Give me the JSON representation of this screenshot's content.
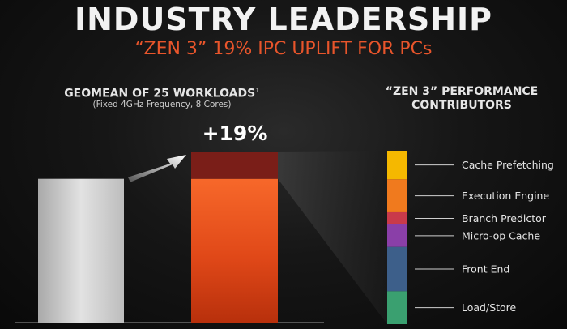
{
  "header": {
    "title": "INDUSTRY LEADERSHIP",
    "subtitle": "“ZEN 3” 19% IPC UPLIFT FOR PCs"
  },
  "left_panel": {
    "heading": "GEOMEAN OF 25 WORKLOADS",
    "footnote_mark": "1",
    "subheading": "(Fixed 4GHz Frequency, 8 Cores)"
  },
  "right_panel": {
    "heading_line1": "“ZEN 3” PERFORMANCE",
    "heading_line2": "CONTRIBUTORS"
  },
  "chart_data": {
    "type": "bar",
    "categories": [
      "",
      ""
    ],
    "values": [
      100,
      119
    ],
    "ylim": [
      0,
      119
    ],
    "uplift_label": "+19%",
    "colors": {
      "base": "#cfcfcf",
      "zen3": "#f05a1e",
      "uplift": "#7a1e18"
    },
    "contributors": [
      {
        "name": "Cache Prefetching",
        "share": 0.165,
        "color": "#f5b800"
      },
      {
        "name": "Execution Engine",
        "share": 0.19,
        "color": "#f07a1e"
      },
      {
        "name": "Branch Predictor",
        "share": 0.07,
        "color": "#c93a4a"
      },
      {
        "name": "Micro-op Cache",
        "share": 0.13,
        "color": "#8a3fa8"
      },
      {
        "name": "Front End",
        "share": 0.255,
        "color": "#3d5f8a"
      },
      {
        "name": "Load/Store",
        "share": 0.19,
        "color": "#3aa070"
      }
    ]
  }
}
